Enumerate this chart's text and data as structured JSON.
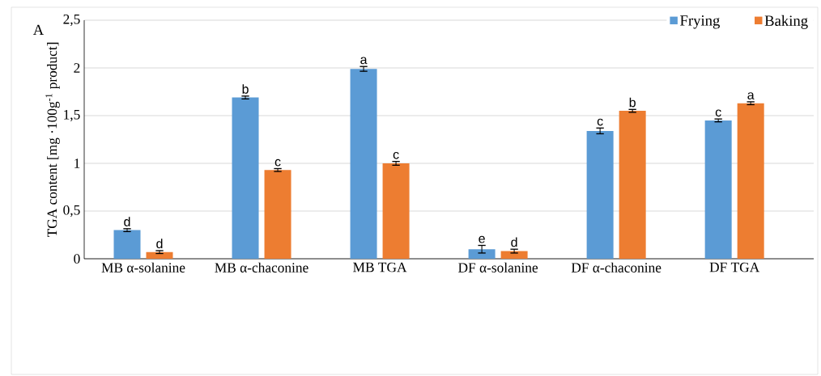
{
  "chart_data": {
    "type": "bar",
    "ylabel": "TGA content [mg ·100g$^{-1}$ product]",
    "annotations": [
      "A"
    ],
    "categories": [
      "MB α-solanine",
      "MB α-chaconine",
      "MB TGA",
      "DF α-solanine",
      "DF α-chaconine",
      "DF TGA"
    ],
    "series": [
      {
        "name": "Frying",
        "color": "#5b9bd5",
        "values": [
          0.3,
          1.69,
          1.99,
          0.1,
          1.34,
          1.45
        ],
        "errors": [
          0.015,
          0.015,
          0.025,
          0.04,
          0.03,
          0.015
        ],
        "value_labels": [
          "d",
          "b",
          "a",
          "e",
          "c",
          "c"
        ]
      },
      {
        "name": "Baking",
        "color": "#ed7d31",
        "values": [
          0.07,
          0.93,
          1.0,
          0.08,
          1.55,
          1.63
        ],
        "errors": [
          0.015,
          0.015,
          0.02,
          0.02,
          0.015,
          0.015
        ],
        "value_labels": [
          "d",
          "c",
          "c",
          "d",
          "b",
          "a"
        ]
      }
    ],
    "ylim": [
      0,
      2.5
    ],
    "yticks": [
      0,
      {
        "value": 0.5,
        "label": "0,5"
      },
      1,
      {
        "value": 1.5,
        "label": "1,5"
      },
      2,
      {
        "value": 2.5,
        "label": "2,5"
      }
    ],
    "grid": "y",
    "legend": "top right"
  }
}
